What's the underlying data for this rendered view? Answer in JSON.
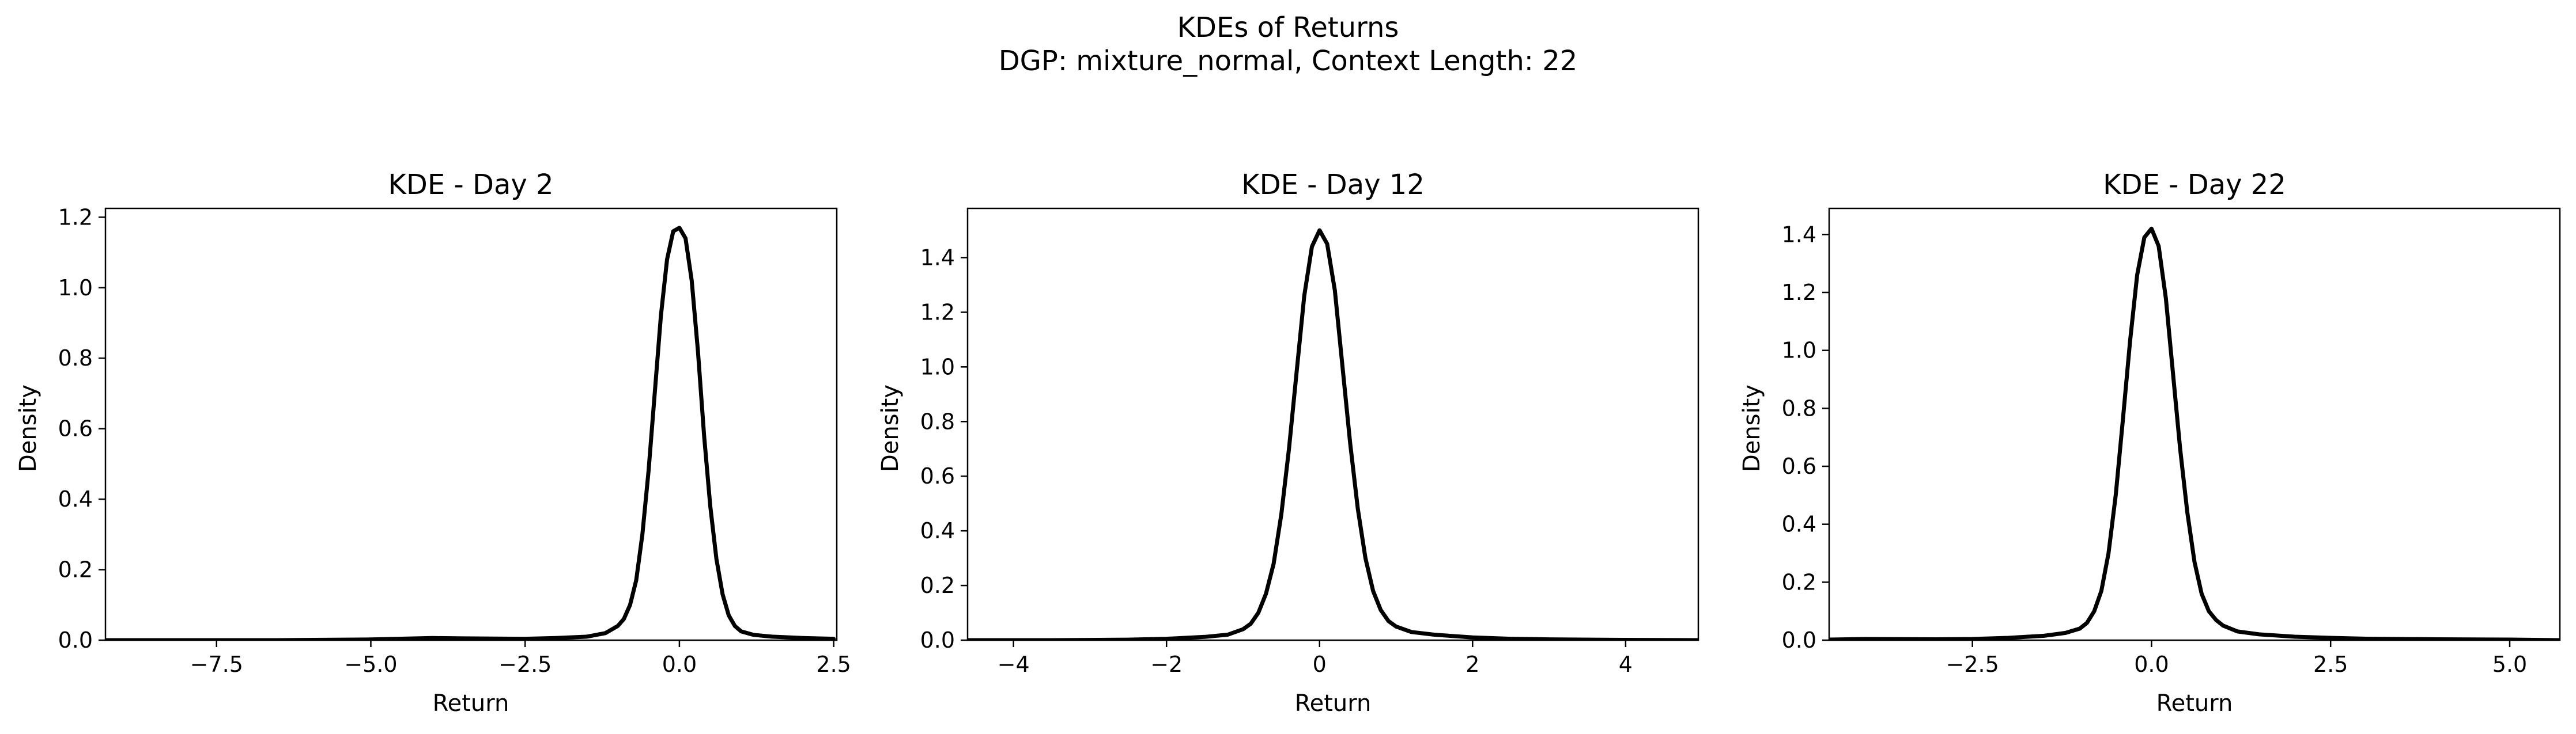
{
  "figure": {
    "title_line1": "KDEs of Returns",
    "title_line2": "DGP: mixture_normal, Context Length: 22",
    "background": "#ffffff",
    "line_color": "#000000"
  },
  "chart_data": [
    {
      "type": "line",
      "title": "KDE - Day 2",
      "xlabel": "Return",
      "ylabel": "Density",
      "xlim": [
        -9.3,
        2.55
      ],
      "ylim": [
        0,
        1.225
      ],
      "xticks": [
        -7.5,
        -5.0,
        -2.5,
        0.0,
        2.5
      ],
      "xtick_labels": [
        "−7.5",
        "−5.0",
        "−2.5",
        "0.0",
        "2.5"
      ],
      "yticks": [
        0.0,
        0.2,
        0.4,
        0.6,
        0.8,
        1.0,
        1.2
      ],
      "ytick_labels": [
        "0.0",
        "0.2",
        "0.4",
        "0.6",
        "0.8",
        "1.0",
        "1.2"
      ],
      "grid": false,
      "series": [
        {
          "x": [
            -9.3,
            -8.0,
            -6.5,
            -5.0,
            -4.0,
            -3.5,
            -2.5,
            -2.0,
            -1.5,
            -1.2,
            -1.0,
            -0.9,
            -0.8,
            -0.7,
            -0.6,
            -0.5,
            -0.4,
            -0.3,
            -0.2,
            -0.1,
            0.0,
            0.1,
            0.2,
            0.3,
            0.4,
            0.5,
            0.6,
            0.7,
            0.8,
            0.9,
            1.0,
            1.2,
            1.5,
            2.0,
            2.5
          ],
          "y": [
            0.0,
            0.0,
            0.0,
            0.002,
            0.006,
            0.005,
            0.004,
            0.006,
            0.01,
            0.02,
            0.04,
            0.06,
            0.1,
            0.17,
            0.3,
            0.48,
            0.7,
            0.92,
            1.08,
            1.16,
            1.17,
            1.14,
            1.02,
            0.82,
            0.58,
            0.38,
            0.23,
            0.13,
            0.07,
            0.04,
            0.025,
            0.015,
            0.01,
            0.006,
            0.004
          ]
        }
      ]
    },
    {
      "type": "line",
      "title": "KDE - Day 12",
      "xlabel": "Return",
      "ylabel": "Density",
      "xlim": [
        -4.6,
        4.95
      ],
      "ylim": [
        0,
        1.58
      ],
      "xticks": [
        -4,
        -2,
        0,
        2,
        4
      ],
      "xtick_labels": [
        "−4",
        "−2",
        "0",
        "2",
        "4"
      ],
      "yticks": [
        0.0,
        0.2,
        0.4,
        0.6,
        0.8,
        1.0,
        1.2,
        1.4
      ],
      "ytick_labels": [
        "0.0",
        "0.2",
        "0.4",
        "0.6",
        "0.8",
        "1.0",
        "1.2",
        "1.4"
      ],
      "grid": false,
      "series": [
        {
          "x": [
            -4.6,
            -3.5,
            -2.5,
            -2.0,
            -1.5,
            -1.2,
            -1.0,
            -0.9,
            -0.8,
            -0.7,
            -0.6,
            -0.5,
            -0.4,
            -0.3,
            -0.2,
            -0.1,
            0.0,
            0.1,
            0.2,
            0.3,
            0.4,
            0.5,
            0.6,
            0.7,
            0.8,
            0.9,
            1.0,
            1.2,
            1.5,
            2.0,
            2.5,
            3.0,
            4.0,
            4.95
          ],
          "y": [
            0.0,
            0.0,
            0.002,
            0.005,
            0.012,
            0.02,
            0.04,
            0.06,
            0.1,
            0.17,
            0.28,
            0.46,
            0.7,
            0.98,
            1.26,
            1.44,
            1.5,
            1.45,
            1.28,
            1.0,
            0.72,
            0.48,
            0.3,
            0.18,
            0.11,
            0.07,
            0.05,
            0.03,
            0.02,
            0.01,
            0.005,
            0.003,
            0.001,
            0.0
          ]
        }
      ]
    },
    {
      "type": "line",
      "title": "KDE - Day 22",
      "xlabel": "Return",
      "ylabel": "Density",
      "xlim": [
        -4.5,
        5.7
      ],
      "ylim": [
        0,
        1.49
      ],
      "xticks": [
        -2.5,
        0.0,
        2.5,
        5.0
      ],
      "xtick_labels": [
        "−2.5",
        "0.0",
        "2.5",
        "5.0"
      ],
      "yticks": [
        0.0,
        0.2,
        0.4,
        0.6,
        0.8,
        1.0,
        1.2,
        1.4
      ],
      "ytick_labels": [
        "0.0",
        "0.2",
        "0.4",
        "0.6",
        "0.8",
        "1.0",
        "1.2",
        "1.4"
      ],
      "grid": false,
      "series": [
        {
          "x": [
            -4.5,
            -4.0,
            -3.0,
            -2.5,
            -2.0,
            -1.5,
            -1.2,
            -1.0,
            -0.9,
            -0.8,
            -0.7,
            -0.6,
            -0.5,
            -0.4,
            -0.3,
            -0.2,
            -0.1,
            0.0,
            0.1,
            0.2,
            0.3,
            0.4,
            0.5,
            0.6,
            0.7,
            0.8,
            0.9,
            1.0,
            1.2,
            1.5,
            2.0,
            2.5,
            3.0,
            4.0,
            5.0,
            5.7
          ],
          "y": [
            0.002,
            0.004,
            0.003,
            0.004,
            0.008,
            0.015,
            0.025,
            0.04,
            0.06,
            0.1,
            0.17,
            0.3,
            0.5,
            0.76,
            1.03,
            1.26,
            1.39,
            1.42,
            1.36,
            1.18,
            0.92,
            0.66,
            0.44,
            0.27,
            0.16,
            0.1,
            0.07,
            0.05,
            0.03,
            0.02,
            0.012,
            0.008,
            0.005,
            0.003,
            0.002,
            0.0
          ]
        }
      ]
    }
  ]
}
